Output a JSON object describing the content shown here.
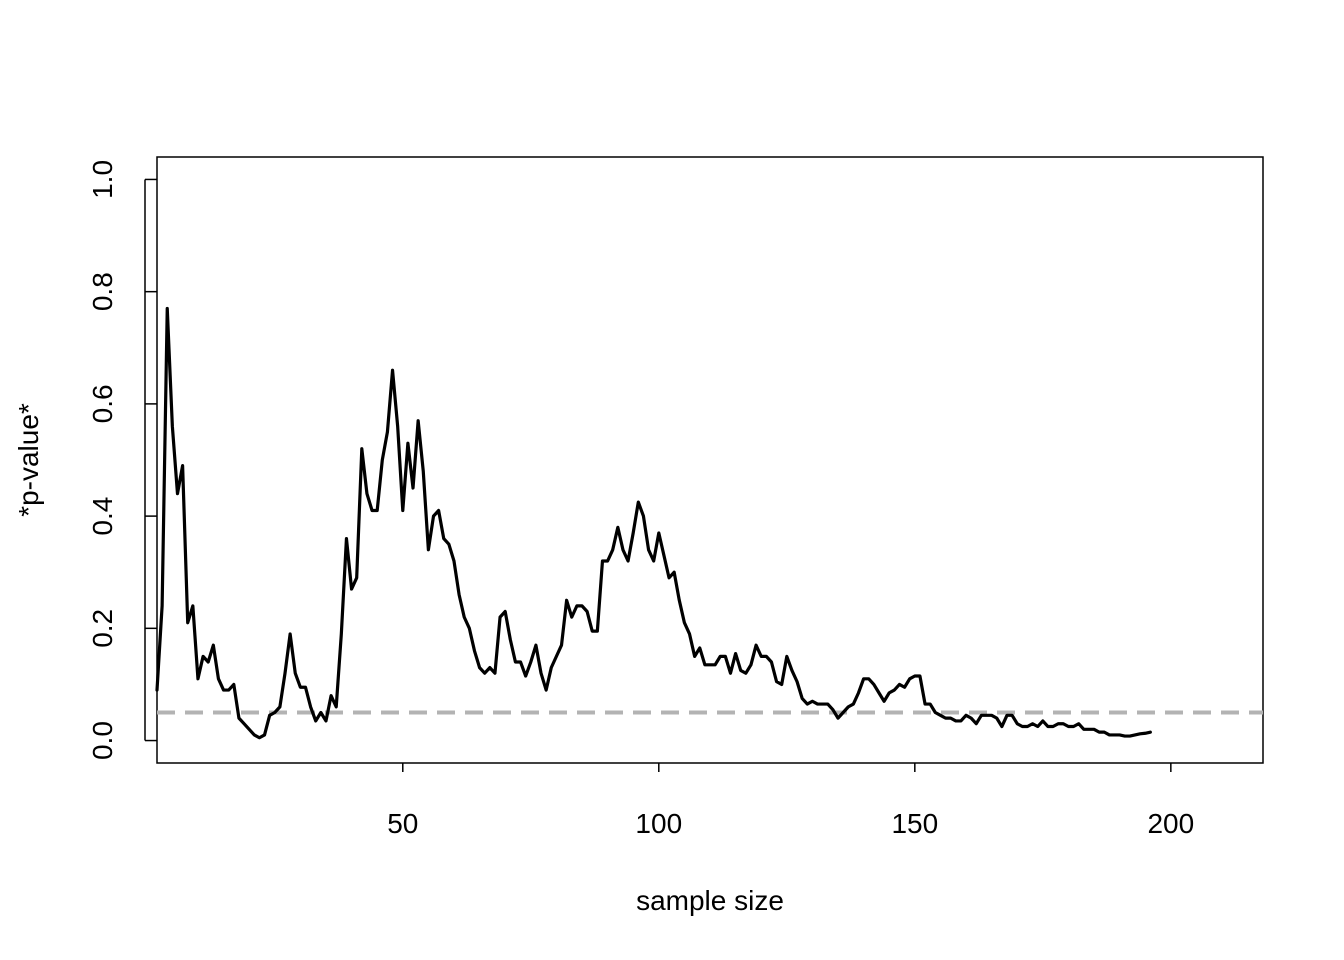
{
  "chart_data": {
    "type": "line",
    "xlabel": "sample size",
    "ylabel": "*p-value*",
    "xlim": [
      2,
      218
    ],
    "ylim": [
      -0.04,
      1.04
    ],
    "x_ticks": [
      50,
      100,
      150,
      200
    ],
    "y_ticks": [
      0.0,
      0.2,
      0.4,
      0.6,
      0.8,
      1.0
    ],
    "x_tick_labels": [
      "50",
      "100",
      "150",
      "200"
    ],
    "y_tick_labels": [
      "0.0",
      "0.2",
      "0.4",
      "0.6",
      "0.8",
      "1.0"
    ],
    "grid": false,
    "reference_line": {
      "y": 0.05,
      "style": "dashed",
      "color": "#b3b3b3"
    },
    "series": [
      {
        "color": "#000000",
        "points": [
          [
            2,
            0.09
          ],
          [
            3,
            0.24
          ],
          [
            4,
            0.77
          ],
          [
            5,
            0.56
          ],
          [
            6,
            0.44
          ],
          [
            7,
            0.49
          ],
          [
            8,
            0.21
          ],
          [
            9,
            0.24
          ],
          [
            10,
            0.11
          ],
          [
            11,
            0.15
          ],
          [
            12,
            0.14
          ],
          [
            13,
            0.17
          ],
          [
            14,
            0.11
          ],
          [
            15,
            0.09
          ],
          [
            16,
            0.09
          ],
          [
            17,
            0.1
          ],
          [
            18,
            0.04
          ],
          [
            19,
            0.03
          ],
          [
            20,
            0.02
          ],
          [
            21,
            0.01
          ],
          [
            22,
            0.005
          ],
          [
            23,
            0.01
          ],
          [
            24,
            0.045
          ],
          [
            25,
            0.05
          ],
          [
            26,
            0.06
          ],
          [
            27,
            0.12
          ],
          [
            28,
            0.19
          ],
          [
            29,
            0.12
          ],
          [
            30,
            0.095
          ],
          [
            31,
            0.095
          ],
          [
            32,
            0.06
          ],
          [
            33,
            0.035
          ],
          [
            34,
            0.05
          ],
          [
            35,
            0.035
          ],
          [
            36,
            0.08
          ],
          [
            37,
            0.06
          ],
          [
            38,
            0.19
          ],
          [
            39,
            0.36
          ],
          [
            40,
            0.27
          ],
          [
            41,
            0.29
          ],
          [
            42,
            0.52
          ],
          [
            43,
            0.44
          ],
          [
            44,
            0.41
          ],
          [
            45,
            0.41
          ],
          [
            46,
            0.5
          ],
          [
            47,
            0.55
          ],
          [
            48,
            0.66
          ],
          [
            49,
            0.56
          ],
          [
            50,
            0.41
          ],
          [
            51,
            0.53
          ],
          [
            52,
            0.45
          ],
          [
            53,
            0.57
          ],
          [
            54,
            0.48
          ],
          [
            55,
            0.34
          ],
          [
            56,
            0.4
          ],
          [
            57,
            0.41
          ],
          [
            58,
            0.36
          ],
          [
            59,
            0.35
          ],
          [
            60,
            0.32
          ],
          [
            61,
            0.26
          ],
          [
            62,
            0.22
          ],
          [
            63,
            0.2
          ],
          [
            64,
            0.16
          ],
          [
            65,
            0.13
          ],
          [
            66,
            0.12
          ],
          [
            67,
            0.13
          ],
          [
            68,
            0.12
          ],
          [
            69,
            0.22
          ],
          [
            70,
            0.23
          ],
          [
            71,
            0.18
          ],
          [
            72,
            0.14
          ],
          [
            73,
            0.14
          ],
          [
            74,
            0.115
          ],
          [
            75,
            0.14
          ],
          [
            76,
            0.17
          ],
          [
            77,
            0.12
          ],
          [
            78,
            0.09
          ],
          [
            79,
            0.13
          ],
          [
            80,
            0.15
          ],
          [
            81,
            0.17
          ],
          [
            82,
            0.25
          ],
          [
            83,
            0.22
          ],
          [
            84,
            0.24
          ],
          [
            85,
            0.24
          ],
          [
            86,
            0.23
          ],
          [
            87,
            0.195
          ],
          [
            88,
            0.195
          ],
          [
            89,
            0.32
          ],
          [
            90,
            0.32
          ],
          [
            91,
            0.34
          ],
          [
            92,
            0.38
          ],
          [
            93,
            0.34
          ],
          [
            94,
            0.32
          ],
          [
            95,
            0.37
          ],
          [
            96,
            0.425
          ],
          [
            97,
            0.4
          ],
          [
            98,
            0.34
          ],
          [
            99,
            0.32
          ],
          [
            100,
            0.37
          ],
          [
            101,
            0.33
          ],
          [
            102,
            0.29
          ],
          [
            103,
            0.3
          ],
          [
            104,
            0.25
          ],
          [
            105,
            0.21
          ],
          [
            106,
            0.19
          ],
          [
            107,
            0.15
          ],
          [
            108,
            0.165
          ],
          [
            109,
            0.135
          ],
          [
            110,
            0.135
          ],
          [
            111,
            0.135
          ],
          [
            112,
            0.15
          ],
          [
            113,
            0.15
          ],
          [
            114,
            0.12
          ],
          [
            115,
            0.155
          ],
          [
            116,
            0.125
          ],
          [
            117,
            0.12
          ],
          [
            118,
            0.135
          ],
          [
            119,
            0.17
          ],
          [
            120,
            0.15
          ],
          [
            121,
            0.15
          ],
          [
            122,
            0.14
          ],
          [
            123,
            0.105
          ],
          [
            124,
            0.1
          ],
          [
            125,
            0.15
          ],
          [
            126,
            0.125
          ],
          [
            127,
            0.105
          ],
          [
            128,
            0.075
          ],
          [
            129,
            0.065
          ],
          [
            130,
            0.07
          ],
          [
            131,
            0.065
          ],
          [
            132,
            0.065
          ],
          [
            133,
            0.065
          ],
          [
            134,
            0.055
          ],
          [
            135,
            0.04
          ],
          [
            136,
            0.05
          ],
          [
            137,
            0.06
          ],
          [
            138,
            0.065
          ],
          [
            139,
            0.085
          ],
          [
            140,
            0.11
          ],
          [
            141,
            0.11
          ],
          [
            142,
            0.1
          ],
          [
            143,
            0.085
          ],
          [
            144,
            0.07
          ],
          [
            145,
            0.085
          ],
          [
            146,
            0.09
          ],
          [
            147,
            0.1
          ],
          [
            148,
            0.095
          ],
          [
            149,
            0.11
          ],
          [
            150,
            0.115
          ],
          [
            151,
            0.115
          ],
          [
            152,
            0.065
          ],
          [
            153,
            0.065
          ],
          [
            154,
            0.05
          ],
          [
            155,
            0.045
          ],
          [
            156,
            0.04
          ],
          [
            157,
            0.04
          ],
          [
            158,
            0.035
          ],
          [
            159,
            0.035
          ],
          [
            160,
            0.045
          ],
          [
            161,
            0.04
          ],
          [
            162,
            0.03
          ],
          [
            163,
            0.045
          ],
          [
            164,
            0.045
          ],
          [
            165,
            0.045
          ],
          [
            166,
            0.04
          ],
          [
            167,
            0.025
          ],
          [
            168,
            0.045
          ],
          [
            169,
            0.045
          ],
          [
            170,
            0.03
          ],
          [
            171,
            0.025
          ],
          [
            172,
            0.025
          ],
          [
            173,
            0.03
          ],
          [
            174,
            0.025
          ],
          [
            175,
            0.035
          ],
          [
            176,
            0.025
          ],
          [
            177,
            0.025
          ],
          [
            178,
            0.03
          ],
          [
            179,
            0.03
          ],
          [
            180,
            0.025
          ],
          [
            181,
            0.025
          ],
          [
            182,
            0.03
          ],
          [
            183,
            0.02
          ],
          [
            184,
            0.02
          ],
          [
            185,
            0.02
          ],
          [
            186,
            0.015
          ],
          [
            187,
            0.015
          ],
          [
            188,
            0.01
          ],
          [
            189,
            0.01
          ],
          [
            190,
            0.01
          ],
          [
            191,
            0.008
          ],
          [
            192,
            0.008
          ],
          [
            193,
            0.01
          ],
          [
            194,
            0.012
          ],
          [
            195,
            0.013
          ],
          [
            196,
            0.015
          ]
        ]
      }
    ]
  }
}
